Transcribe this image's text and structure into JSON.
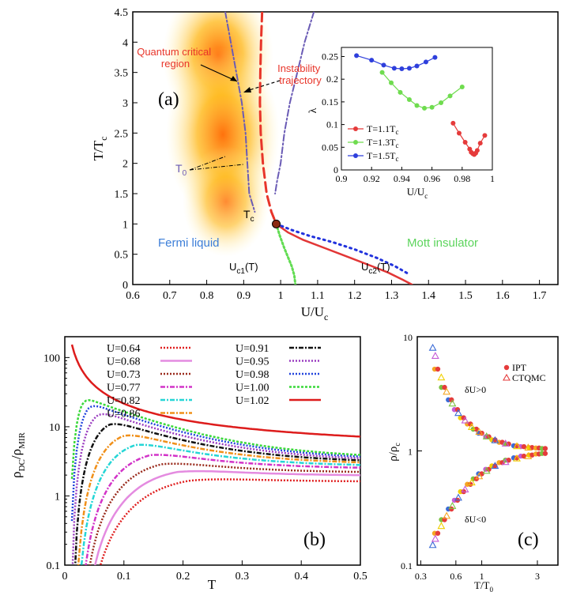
{
  "chart_data": [
    {
      "id": "a",
      "type": "line",
      "panel_label": "(a)",
      "xlabel": "U/U",
      "xlabel_sub": "c",
      "ylabel": "T/T",
      "ylabel_sub": "c",
      "xlim": [
        0.6,
        1.75
      ],
      "ylim": [
        0,
        4.5
      ],
      "xticks": [
        "0.6",
        "0.7",
        "0.8",
        "0.9",
        "1",
        "1.1",
        "1.2",
        "1.3",
        "1.4",
        "1.5",
        "1.6",
        "1.7"
      ],
      "yticks": [
        "0",
        "0.5",
        "1",
        "1.5",
        "2",
        "2.5",
        "3",
        "3.5",
        "4",
        "4.5"
      ],
      "annotations": {
        "quantum_critical": "Quantum critical\nregion",
        "instability": "Instability\ntrajectory",
        "t0": "T",
        "t0_sub": "0",
        "tc": "T",
        "tc_sub": "c",
        "fermi": "Fermi liquid",
        "mott": "Mott insulator",
        "uc1": "U",
        "uc1_sub": "c1",
        "uc1_tail": "(T)",
        "uc2": "U",
        "uc2_sub": "c2",
        "uc2_tail": "(T)"
      },
      "colors": {
        "qc": "#e8352a",
        "instab": "#e8352a",
        "t0": "#6a5bb5",
        "fermi": "#3c7ed8",
        "mott": "#5cd45c",
        "uc1": "#62dc52",
        "uc2_line": "#e23636",
        "uc2_dots": "#2233dd"
      },
      "series": [
        {
          "name": "instability trajectory",
          "x": [
            0.95,
            0.947,
            0.945,
            0.944,
            0.946,
            0.952,
            0.962,
            0.975,
            0.988
          ],
          "y": [
            4.5,
            4.0,
            3.5,
            3.0,
            2.5,
            2.0,
            1.5,
            1.2,
            1.0
          ]
        },
        {
          "name": "T0 left",
          "x": [
            0.85,
            0.865,
            0.88,
            0.895,
            0.905,
            0.91,
            0.915,
            0.93
          ],
          "y": [
            4.5,
            4.0,
            3.5,
            3.0,
            2.5,
            2.0,
            1.5,
            1.2
          ]
        },
        {
          "name": "T0 right",
          "x": [
            1.09,
            1.065,
            1.045,
            1.025,
            1.01,
            1.0,
            0.99,
            0.985
          ],
          "y": [
            4.5,
            4.0,
            3.5,
            3.0,
            2.5,
            2.0,
            1.7,
            1.5
          ]
        },
        {
          "name": "Uc1(T)",
          "x": [
            0.988,
            0.998,
            1.01,
            1.02,
            1.03,
            1.037,
            1.04
          ],
          "y": [
            1.0,
            0.8,
            0.6,
            0.45,
            0.3,
            0.15,
            0.0
          ]
        },
        {
          "name": "Uc2(T) line",
          "x": [
            0.988,
            1.02,
            1.06,
            1.12,
            1.18,
            1.24,
            1.29,
            1.33,
            1.355
          ],
          "y": [
            1.0,
            0.86,
            0.74,
            0.6,
            0.46,
            0.32,
            0.2,
            0.08,
            0.0
          ]
        },
        {
          "name": "Uc2(T) dots",
          "x": [
            0.988,
            1.03,
            1.08,
            1.14,
            1.2,
            1.26,
            1.31,
            1.35
          ],
          "y": [
            1.0,
            0.9,
            0.8,
            0.7,
            0.58,
            0.44,
            0.3,
            0.16
          ]
        }
      ],
      "tc_point": {
        "x": 0.988,
        "y": 1.0
      }
    },
    {
      "id": "a-inset",
      "type": "line",
      "xlabel": "U/U",
      "xlabel_sub": "c",
      "ylabel": "λ",
      "xlim": [
        0.9,
        1.0
      ],
      "ylim": [
        0,
        0.27
      ],
      "xticks": [
        "0.9",
        "0.92",
        "0.94",
        "0.96",
        "0.98",
        "1"
      ],
      "yticks": [
        "0",
        "0.05",
        "0.1",
        "0.15",
        "0.2",
        "0.25"
      ],
      "legend_position": "bottom-left",
      "series": [
        {
          "name": "T=1.1T",
          "name_sub": "c",
          "color": "#e53b3b",
          "x": [
            0.974,
            0.978,
            0.982,
            0.985,
            0.986,
            0.987,
            0.988,
            0.989,
            0.99,
            0.992,
            0.995
          ],
          "y": [
            0.103,
            0.081,
            0.061,
            0.046,
            0.039,
            0.036,
            0.034,
            0.037,
            0.043,
            0.059,
            0.076
          ]
        },
        {
          "name": "T=1.3T",
          "name_sub": "c",
          "color": "#6fdc4f",
          "x": [
            0.927,
            0.933,
            0.939,
            0.945,
            0.95,
            0.955,
            0.96,
            0.966,
            0.972,
            0.98
          ],
          "y": [
            0.215,
            0.192,
            0.171,
            0.155,
            0.142,
            0.136,
            0.138,
            0.148,
            0.163,
            0.183
          ]
        },
        {
          "name": "T=1.5T",
          "name_sub": "c",
          "color": "#2e3fdc",
          "x": [
            0.91,
            0.92,
            0.928,
            0.935,
            0.94,
            0.945,
            0.95,
            0.956,
            0.962
          ],
          "y": [
            0.252,
            0.242,
            0.231,
            0.224,
            0.223,
            0.224,
            0.229,
            0.238,
            0.248
          ]
        }
      ]
    },
    {
      "id": "b",
      "type": "line",
      "panel_label": "(b)",
      "xlabel": "T",
      "ylabel": "ρ",
      "ylabel_sub": "DC",
      "ylabel_mid": "/ρ",
      "ylabel_sub2": "MIR",
      "xlim": [
        0,
        0.5
      ],
      "ylim": [
        0.1,
        200
      ],
      "yscale": "log",
      "xticks": [
        "0",
        "0.1",
        "0.2",
        "0.3",
        "0.4",
        "0.5"
      ],
      "yticks": [
        "0.1",
        "1",
        "10",
        "100"
      ],
      "legend_position": "top",
      "series": [
        {
          "name": "U=0.64",
          "color": "#e02020",
          "dash": "2 2",
          "u": 0.64,
          "asym": 1.6
        },
        {
          "name": "U=0.68",
          "color": "#e48be0",
          "dash": "10 0",
          "u": 0.68,
          "asym": 1.95
        },
        {
          "name": "U=0.73",
          "color": "#9a2b1d",
          "dash": "2 2",
          "u": 0.73,
          "asym": 2.15
        },
        {
          "name": "U=0.77",
          "color": "#d233c8",
          "dash": "6 2 2 2",
          "u": 0.77,
          "asym": 2.45
        },
        {
          "name": "U=0.82",
          "color": "#25d6d6",
          "dash": "6 2 2 2",
          "u": 0.82,
          "asym": 2.65
        },
        {
          "name": "U=0.86",
          "color": "#f0901a",
          "dash": "6 2 2 2",
          "u": 0.86,
          "asym": 2.85
        },
        {
          "name": "U=0.91",
          "color": "#111111",
          "dash": "6 2 2 2",
          "u": 0.91,
          "asym": 3.0
        },
        {
          "name": "U=0.95",
          "color": "#9a3cc0",
          "dash": "2 2",
          "u": 0.95,
          "asym": 3.15
        },
        {
          "name": "U=0.98",
          "color": "#2244dd",
          "dash": "2 2",
          "u": 0.98,
          "asym": 3.3
        },
        {
          "name": "U=1.00",
          "color": "#3ad83a",
          "dash": "3 2",
          "u": 1.0,
          "asym": 3.45
        },
        {
          "name": "U=1.02",
          "color": "#dd1c1c",
          "dash": "10 0",
          "u": 1.02,
          "asym": 3.6
        }
      ]
    },
    {
      "id": "c",
      "type": "scatter",
      "panel_label": "(c)",
      "xlabel": "T/T",
      "xlabel_sub": "0",
      "ylabel": "ρ/ρ",
      "ylabel_sub": "c",
      "xlim": [
        0.28,
        4.5
      ],
      "ylim": [
        0.1,
        10
      ],
      "xscale": "log",
      "yscale": "log",
      "xticks": [
        "0.3",
        "0.6",
        "1",
        "3"
      ],
      "yticks": [
        "0.1",
        "1",
        "10"
      ],
      "legend_position": "top-right",
      "annotations": {
        "up": "δU>0",
        "down": "δU<0"
      },
      "series": [
        {
          "name": "IPT",
          "marker": "circle",
          "color": "#e53b3b",
          "x": [
            0.42,
            0.48,
            0.55,
            0.62,
            0.7,
            0.8,
            0.9,
            1.0,
            1.15,
            1.3,
            1.5,
            1.7,
            2.0,
            2.3,
            2.7,
            3.1,
            3.5
          ],
          "y_up": [
            5.2,
            3.6,
            2.8,
            2.3,
            1.95,
            1.72,
            1.55,
            1.43,
            1.33,
            1.25,
            1.19,
            1.15,
            1.11,
            1.09,
            1.07,
            1.06,
            1.05
          ],
          "y_down": [
            0.19,
            0.25,
            0.31,
            0.37,
            0.44,
            0.51,
            0.57,
            0.63,
            0.69,
            0.74,
            0.79,
            0.83,
            0.87,
            0.9,
            0.92,
            0.94,
            0.95
          ]
        },
        {
          "name": "CTQMC",
          "marker": "triangle",
          "color": "#e53b3b",
          "x": [
            0.38,
            0.4,
            0.45,
            0.5,
            0.56,
            0.63,
            0.72,
            0.82,
            0.95,
            1.1,
            1.3,
            1.6,
            2.0,
            2.5
          ],
          "y_up": [
            8.0,
            6.8,
            4.4,
            3.3,
            2.6,
            2.15,
            1.85,
            1.62,
            1.47,
            1.34,
            1.24,
            1.16,
            1.1,
            1.07
          ],
          "y_down": [
            0.15,
            0.17,
            0.22,
            0.27,
            0.33,
            0.39,
            0.46,
            0.53,
            0.6,
            0.67,
            0.74,
            0.8,
            0.86,
            0.9
          ]
        }
      ],
      "extra_colors": [
        "#f5a623",
        "#7cc242",
        "#3b6bd6",
        "#c55bd6",
        "#f0d000"
      ]
    }
  ]
}
